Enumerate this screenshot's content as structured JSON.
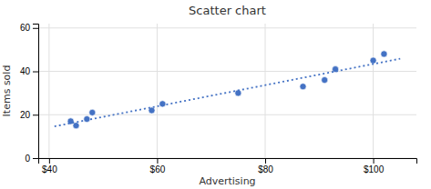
{
  "chart_data": {
    "type": "scatter",
    "title": "Scatter chart",
    "xlabel": "Advertising",
    "ylabel": "Items sold",
    "series": [
      {
        "type": "scatter",
        "marker": "circle",
        "color": "#4472C4",
        "x": [
          44,
          45,
          47,
          48,
          59,
          61,
          75,
          87,
          91,
          93,
          100,
          102
        ],
        "values": [
          17,
          15,
          18,
          21,
          22,
          25,
          30,
          33,
          36,
          41,
          45,
          48
        ]
      },
      {
        "type": "line",
        "line_style": "dotted",
        "color": "#4472C4",
        "x": [
          41,
          105
        ],
        "values": [
          14.6229,
          45.8274
        ]
      }
    ],
    "xlim": [
      38,
      108
    ],
    "xticks": [
      {
        "value": 40,
        "label": "$40"
      },
      {
        "value": 60,
        "label": "$60"
      },
      {
        "value": 80,
        "label": "$80"
      },
      {
        "value": 100,
        "label": "$100"
      }
    ],
    "ylim": [
      0,
      62
    ],
    "yticks": [
      0,
      20,
      40,
      60
    ],
    "grid": true
  }
}
